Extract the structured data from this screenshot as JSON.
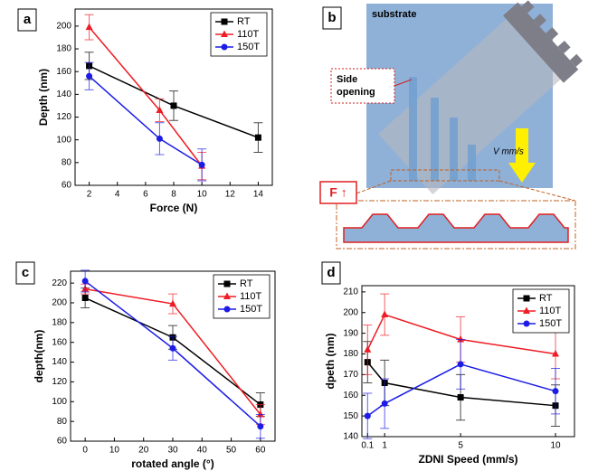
{
  "chart_data": [
    {
      "type": "line",
      "panel_label": "a",
      "xlabel": "Force (N)",
      "ylabel": "Depth (nm)",
      "xlim": [
        1,
        15
      ],
      "xticks": [
        2,
        4,
        6,
        8,
        10,
        12,
        14
      ],
      "ylim": [
        60,
        215
      ],
      "yticks": [
        60,
        80,
        100,
        120,
        140,
        160,
        180,
        200
      ],
      "legend": "upper right",
      "series": [
        {
          "name": "RT",
          "color": "#000000",
          "marker": "square",
          "x": [
            2,
            8,
            14
          ],
          "values": [
            165,
            130,
            102
          ],
          "errors": [
            12,
            13,
            13
          ]
        },
        {
          "name": "110T",
          "color": "#ee1c24",
          "marker": "triangle",
          "x": [
            2,
            7,
            10
          ],
          "values": [
            199,
            126,
            77
          ],
          "errors": [
            11,
            10,
            12
          ]
        },
        {
          "name": "150T",
          "color": "#1c1ce6",
          "marker": "circle",
          "x": [
            2,
            7,
            10
          ],
          "values": [
            156,
            101,
            78
          ],
          "errors": [
            12,
            14,
            14
          ]
        }
      ]
    },
    {
      "type": "line",
      "panel_label": "c",
      "xlabel": "rotated angle (°)",
      "ylabel": "depth(nm)",
      "xlim": [
        -5,
        65
      ],
      "xticks": [
        0,
        10,
        20,
        30,
        40,
        50,
        60
      ],
      "ylim": [
        60,
        232
      ],
      "yticks": [
        60,
        80,
        100,
        120,
        140,
        160,
        180,
        200,
        220
      ],
      "legend": "upper right",
      "series": [
        {
          "name": "RT",
          "color": "#000000",
          "marker": "square",
          "x": [
            0,
            30,
            60
          ],
          "values": [
            205,
            165,
            97
          ],
          "errors": [
            10,
            12,
            12
          ]
        },
        {
          "name": "110T",
          "color": "#ee1c24",
          "marker": "triangle",
          "x": [
            0,
            30,
            60
          ],
          "values": [
            214,
            199,
            87
          ],
          "errors": [
            5,
            10,
            10
          ]
        },
        {
          "name": "150T",
          "color": "#1c1ce6",
          "marker": "circle",
          "x": [
            0,
            30,
            60
          ],
          "values": [
            222,
            154,
            75
          ],
          "errors": [
            11,
            12,
            12
          ]
        }
      ]
    },
    {
      "type": "line",
      "panel_label": "d",
      "xlabel": "ZDNI Speed (mm/s)",
      "ylabel": "dpeth (nm)",
      "xlim": [
        -0.2,
        11
      ],
      "xticks": [
        0.1,
        1,
        5,
        10
      ],
      "ylim": [
        140,
        213
      ],
      "yticks": [
        140,
        150,
        160,
        170,
        180,
        190,
        200,
        210
      ],
      "legend": "upper right",
      "series": [
        {
          "name": "RT",
          "color": "#000000",
          "marker": "square",
          "x": [
            0.1,
            1,
            5,
            10
          ],
          "values": [
            176,
            166,
            159,
            155
          ],
          "errors": [
            10,
            11,
            11,
            10
          ]
        },
        {
          "name": "110T",
          "color": "#ee1c24",
          "marker": "triangle",
          "x": [
            0.1,
            1,
            5,
            10
          ],
          "values": [
            182,
            199,
            187,
            180
          ],
          "errors": [
            12,
            10,
            11,
            12
          ]
        },
        {
          "name": "150T",
          "color": "#1c1ce6",
          "marker": "circle",
          "x": [
            0.1,
            1,
            5,
            10
          ],
          "values": [
            150,
            156,
            175,
            162
          ],
          "errors": [
            11,
            12,
            12,
            11
          ]
        }
      ]
    }
  ],
  "diagram": {
    "panel_label": "b",
    "substrate": "substrate",
    "side_opening": [
      "Side",
      "opening"
    ],
    "velocity": "V mm/s",
    "force": "F ↑"
  }
}
